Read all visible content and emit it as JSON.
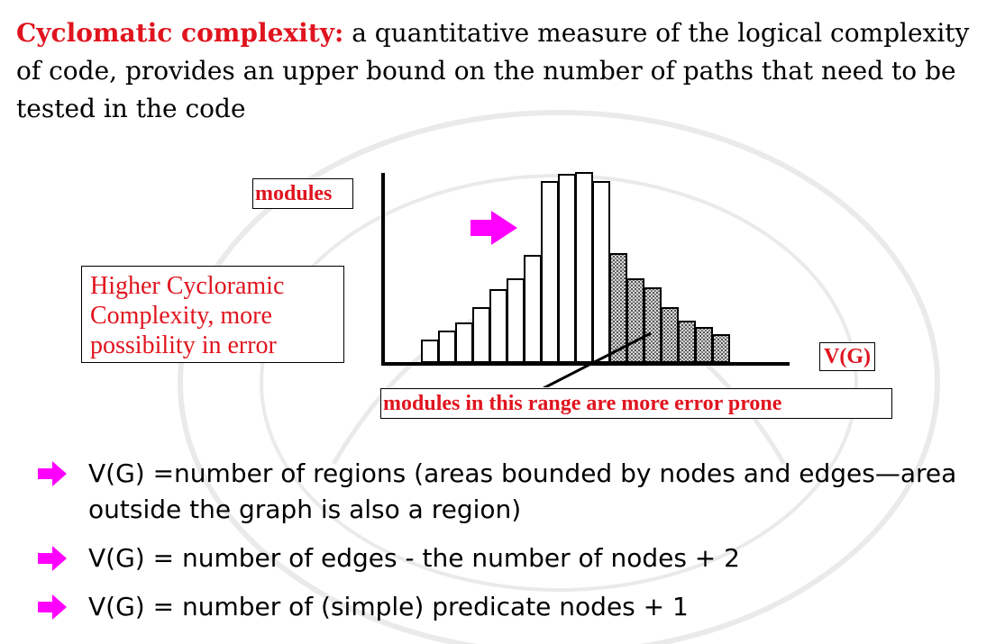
{
  "intro": {
    "term": "Cyclomatic complexity:",
    "definition": " a quantitative measure of the logical complexity of code, provides an upper bound on the number of paths that need to be tested in the code"
  },
  "diagram": {
    "y_label": "modules",
    "x_label": "V(G)",
    "callout_lines": [
      "Higher Cycloramic",
      "Complexity, more",
      "possibility in error"
    ],
    "range_label": "modules in this range are more error prone",
    "bars": [
      {
        "height": 24,
        "shaded": false
      },
      {
        "height": 34,
        "shaded": false
      },
      {
        "height": 43,
        "shaded": false
      },
      {
        "height": 60,
        "shaded": false
      },
      {
        "height": 80,
        "shaded": false
      },
      {
        "height": 92,
        "shaded": false
      },
      {
        "height": 118,
        "shaded": false
      },
      {
        "height": 200,
        "shaded": false
      },
      {
        "height": 208,
        "shaded": false
      },
      {
        "height": 210,
        "shaded": false
      },
      {
        "height": 200,
        "shaded": false
      },
      {
        "height": 120,
        "shaded": true
      },
      {
        "height": 92,
        "shaded": true
      },
      {
        "height": 82,
        "shaded": true
      },
      {
        "height": 60,
        "shaded": true
      },
      {
        "height": 45,
        "shaded": true
      },
      {
        "height": 38,
        "shaded": true
      },
      {
        "height": 30,
        "shaded": true
      }
    ],
    "colors": {
      "label_text": "#e0141e",
      "pointer_arrow": "#ff00ff",
      "shaded_bar": "#9a9a9a"
    }
  },
  "bullets": [
    {
      "icon": "arrow-right-icon",
      "text": "V(G) =number of regions (areas bounded by nodes and edges—area outside the graph is also a region)"
    },
    {
      "icon": "arrow-right-icon",
      "text": "V(G) = number of edges - the number of nodes + 2"
    },
    {
      "icon": "arrow-right-icon",
      "text": "V(G) = number of (simple) predicate nodes + 1"
    }
  ]
}
